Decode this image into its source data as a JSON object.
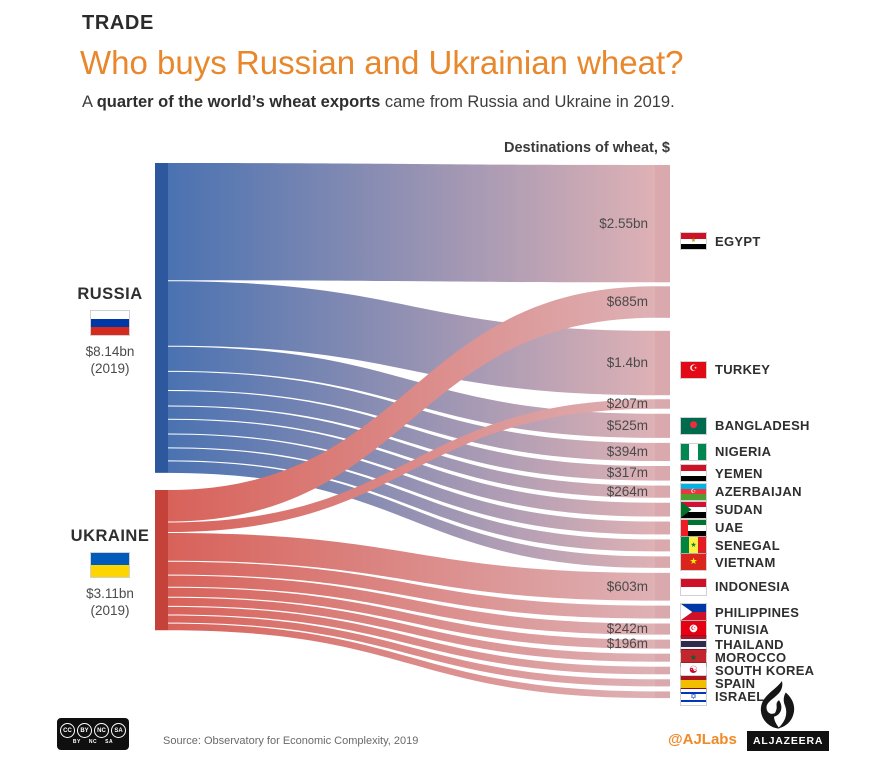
{
  "header": {
    "kicker": "TRADE",
    "title": "Who buys Russian and Ukrainian wheat?",
    "subtitle_prefix": "A ",
    "subtitle_bold": "quarter of the world’s wheat exports",
    "subtitle_suffix": " came from Russia and Ukraine in 2019."
  },
  "chart_data": {
    "type": "sankey",
    "title": "Destinations of wheat, $",
    "currency": "USD",
    "legend_position": "none",
    "sources": [
      {
        "id": "russia",
        "label": "RUSSIA",
        "total": "$8.14bn",
        "year": "(2019)",
        "total_bn": 8.14,
        "node_color": "#2d589d",
        "ribbon_color": "#4a72b1",
        "flag": "russia"
      },
      {
        "id": "ukraine",
        "label": "UKRAINE",
        "total": "$3.11bn",
        "year": "(2019)",
        "total_bn": 3.11,
        "node_color": "#c5423b",
        "ribbon_color": "#d8625a",
        "flag": "ukraine"
      }
    ],
    "destination_node_color": "#d9a9ae",
    "ribbon_end_color": "#deb1b5",
    "flows": [
      {
        "source": "russia",
        "dest": "egypt",
        "value_m": 2550,
        "label": "$2.55bn"
      },
      {
        "source": "ukraine",
        "dest": "egypt",
        "value_m": 685,
        "label": "$685m",
        "gap_after": 13
      },
      {
        "source": "russia",
        "dest": "turkey",
        "value_m": 1400,
        "label": "$1.4bn"
      },
      {
        "source": "ukraine",
        "dest": "turkey",
        "value_m": 207,
        "label": "$207m"
      },
      {
        "source": "russia",
        "dest": "bangladesh",
        "value_m": 525,
        "label": "$525m"
      },
      {
        "source": "russia",
        "dest": "nigeria",
        "value_m": 394,
        "label": "$394m"
      },
      {
        "source": "russia",
        "dest": "yemen",
        "value_m": 317,
        "label": "$317m"
      },
      {
        "source": "russia",
        "dest": "azerbaijan",
        "value_m": 264,
        "label": "$264m"
      },
      {
        "source": "russia",
        "dest": "sudan",
        "value_m": 300,
        "label": "",
        "estimated": true
      },
      {
        "source": "russia",
        "dest": "uae",
        "value_m": 280,
        "label": "",
        "estimated": true
      },
      {
        "source": "russia",
        "dest": "senegal",
        "value_m": 260,
        "label": "",
        "estimated": true
      },
      {
        "source": "russia",
        "dest": "vietnam",
        "value_m": 250,
        "label": "",
        "estimated": true
      },
      {
        "source": "ukraine",
        "dest": "indonesia",
        "value_m": 603,
        "label": "$603m"
      },
      {
        "source": "ukraine",
        "dest": "philippines",
        "value_m": 280,
        "label": "",
        "estimated": true
      },
      {
        "source": "ukraine",
        "dest": "tunisia",
        "value_m": 242,
        "label": "$242m"
      },
      {
        "source": "ukraine",
        "dest": "thailand",
        "value_m": 196,
        "label": "$196m"
      },
      {
        "source": "ukraine",
        "dest": "morocco",
        "value_m": 175,
        "label": "",
        "estimated": true
      },
      {
        "source": "ukraine",
        "dest": "south-korea",
        "value_m": 165,
        "label": "",
        "estimated": true
      },
      {
        "source": "ukraine",
        "dest": "spain",
        "value_m": 155,
        "label": "",
        "estimated": true
      },
      {
        "source": "ukraine",
        "dest": "israel",
        "value_m": 145,
        "label": "",
        "estimated": true
      }
    ],
    "destinations": [
      {
        "id": "egypt",
        "label": "EGYPT"
      },
      {
        "id": "turkey",
        "label": "TURKEY"
      },
      {
        "id": "bangladesh",
        "label": "BANGLADESH"
      },
      {
        "id": "nigeria",
        "label": "NIGERIA"
      },
      {
        "id": "yemen",
        "label": "YEMEN"
      },
      {
        "id": "azerbaijan",
        "label": "AZERBAIJAN"
      },
      {
        "id": "sudan",
        "label": "SUDAN"
      },
      {
        "id": "uae",
        "label": "UAE"
      },
      {
        "id": "senegal",
        "label": "SENEGAL"
      },
      {
        "id": "vietnam",
        "label": "VIETNAM"
      },
      {
        "id": "indonesia",
        "label": "INDONESIA"
      },
      {
        "id": "philippines",
        "label": "PHILIPPINES"
      },
      {
        "id": "tunisia",
        "label": "TUNISIA"
      },
      {
        "id": "thailand",
        "label": "THAILAND"
      },
      {
        "id": "morocco",
        "label": "MOROCCO"
      },
      {
        "id": "south-korea",
        "label": "SOUTH KOREA"
      },
      {
        "id": "spain",
        "label": "SPAIN"
      },
      {
        "id": "israel",
        "label": "ISRAEL"
      }
    ],
    "flags": {
      "russia": {
        "dir": "h",
        "stripes": [
          [
            "#ffffff",
            1
          ],
          [
            "#0039a6",
            1
          ],
          [
            "#d52b1e",
            1
          ]
        ]
      },
      "ukraine": {
        "dir": "h",
        "stripes": [
          [
            "#005bbb",
            1
          ],
          [
            "#ffd500",
            1
          ]
        ]
      },
      "egypt": {
        "dir": "h",
        "stripes": [
          [
            "#ce1126",
            1
          ],
          [
            "#ffffff",
            1
          ],
          [
            "#000000",
            1
          ]
        ],
        "emblems": [
          {
            "ch": "★",
            "color": "#bf9300",
            "size": 6
          }
        ]
      },
      "turkey": {
        "dir": "h",
        "stripes": [
          [
            "#e30a17",
            1
          ]
        ],
        "emblems": [
          {
            "ch": "☪",
            "color": "#ffffff",
            "size": 9
          }
        ]
      },
      "bangladesh": {
        "dir": "h",
        "stripes": [
          [
            "#006a4e",
            1
          ]
        ],
        "emblems": [
          {
            "ch": "●",
            "color": "#f42a41",
            "size": 9
          }
        ]
      },
      "nigeria": {
        "dir": "v",
        "stripes": [
          [
            "#008751",
            1
          ],
          [
            "#ffffff",
            1
          ],
          [
            "#008751",
            1
          ]
        ]
      },
      "yemen": {
        "dir": "h",
        "stripes": [
          [
            "#ce1126",
            1
          ],
          [
            "#ffffff",
            1
          ],
          [
            "#000000",
            1
          ]
        ]
      },
      "azerbaijan": {
        "dir": "h",
        "stripes": [
          [
            "#00b5e2",
            1
          ],
          [
            "#ef3340",
            1
          ],
          [
            "#509e2f",
            1
          ]
        ],
        "emblems": [
          {
            "ch": "☪",
            "color": "#ffffff",
            "size": 6
          }
        ]
      },
      "sudan": {
        "dir": "h",
        "stripes": [
          [
            "#d21034",
            1
          ],
          [
            "#ffffff",
            1
          ],
          [
            "#000000",
            1
          ]
        ],
        "hoist": {
          "type": "triangle",
          "color": "#007229",
          "w": 0.42
        }
      },
      "uae": {
        "dir": "h",
        "stripes": [
          [
            "#00732f",
            1
          ],
          [
            "#ffffff",
            1
          ],
          [
            "#000000",
            1
          ]
        ],
        "hoist": {
          "type": "bar",
          "color": "#ee1c25",
          "w": 0.28
        }
      },
      "senegal": {
        "dir": "v",
        "stripes": [
          [
            "#00853f",
            1
          ],
          [
            "#fdef42",
            1
          ],
          [
            "#e31b23",
            1
          ]
        ],
        "emblems": [
          {
            "ch": "★",
            "color": "#00853f",
            "size": 7
          }
        ]
      },
      "vietnam": {
        "dir": "h",
        "stripes": [
          [
            "#da251d",
            1
          ]
        ],
        "emblems": [
          {
            "ch": "★",
            "color": "#ffef00",
            "size": 9
          }
        ]
      },
      "indonesia": {
        "dir": "h",
        "stripes": [
          [
            "#ce1126",
            1
          ],
          [
            "#ffffff",
            1
          ]
        ]
      },
      "philippines": {
        "dir": "h",
        "stripes": [
          [
            "#0038a8",
            1
          ],
          [
            "#ce1126",
            1
          ]
        ],
        "hoist": {
          "type": "triangle",
          "color": "#ffffff",
          "w": 0.45
        }
      },
      "tunisia": {
        "dir": "h",
        "stripes": [
          [
            "#e70013",
            1
          ]
        ],
        "emblems": [
          {
            "ch": "●",
            "color": "#ffffff",
            "size": 10
          },
          {
            "ch": "☪",
            "color": "#e70013",
            "size": 6
          }
        ]
      },
      "thailand": {
        "dir": "h",
        "stripes": [
          [
            "#a51931",
            1
          ],
          [
            "#f4f5f8",
            1
          ],
          [
            "#2d2a4a",
            2
          ],
          [
            "#f4f5f8",
            1
          ],
          [
            "#a51931",
            1
          ]
        ]
      },
      "morocco": {
        "dir": "h",
        "stripes": [
          [
            "#c1272d",
            1
          ]
        ],
        "emblems": [
          {
            "ch": "★",
            "color": "#006233",
            "size": 8
          }
        ]
      },
      "south-korea": {
        "dir": "h",
        "stripes": [
          [
            "#ffffff",
            1
          ]
        ],
        "emblems": [
          {
            "ch": "☯",
            "color": "#c60c30",
            "size": 10
          }
        ]
      },
      "spain": {
        "dir": "h",
        "stripes": [
          [
            "#aa151b",
            1
          ],
          [
            "#f1bf00",
            2
          ],
          [
            "#aa151b",
            1
          ]
        ]
      },
      "israel": {
        "dir": "h",
        "stripes": [
          [
            "#ffffff",
            3
          ],
          [
            "#0038b8",
            2
          ],
          [
            "#ffffff",
            6
          ],
          [
            "#0038b8",
            2
          ],
          [
            "#ffffff",
            3
          ]
        ],
        "emblems": [
          {
            "ch": "✡",
            "color": "#0038b8",
            "size": 8
          }
        ]
      }
    }
  },
  "footer": {
    "license_circles": [
      "CC",
      "BY",
      "NC",
      "SA"
    ],
    "license_caption": [
      "BY",
      "NC",
      "SA"
    ],
    "source": "Source: Observatory for Economic Complexity, 2019",
    "credit": "@AJLabs",
    "brand": "ALJAZEERA"
  }
}
